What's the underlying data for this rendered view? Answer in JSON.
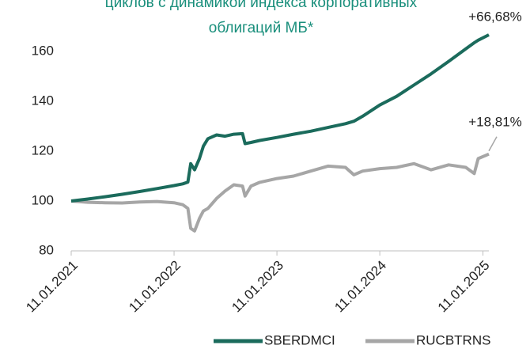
{
  "chart_data": {
    "type": "line",
    "title": [
      "циклов с динамикой индекса корпоративных",
      "облигаций МБ*"
    ],
    "x": [
      "11.01.2021",
      "11.03.2021",
      "11.05.2021",
      "11.07.2021",
      "11.09.2021",
      "11.11.2021",
      "11.01.2022",
      "11.02.2022",
      "01.03.2022",
      "11.03.2022",
      "25.03.2022",
      "11.04.2022",
      "25.04.2022",
      "11.05.2022",
      "11.06.2022",
      "11.07.2022",
      "11.08.2022",
      "11.09.2022",
      "20.09.2022",
      "11.10.2022",
      "11.11.2022",
      "11.01.2023",
      "11.03.2023",
      "11.05.2023",
      "11.07.2023",
      "11.09.2023",
      "11.10.2023",
      "11.11.2023",
      "11.01.2024",
      "11.03.2024",
      "11.05.2024",
      "11.07.2024",
      "11.09.2024",
      "11.11.2024",
      "11.12.2024",
      "25.12.2024",
      "01.02.2025"
    ],
    "series": [
      {
        "name": "SBERDMCI",
        "color": "#1b6b5c",
        "end_label": "+66,68%",
        "values": [
          100,
          100.8,
          101.7,
          102.7,
          103.8,
          105.0,
          106.2,
          106.9,
          107.6,
          115,
          112.5,
          117,
          122,
          125,
          126.5,
          126,
          126.8,
          127,
          123,
          123.5,
          124.3,
          125.5,
          126.8,
          128,
          129.5,
          131,
          132,
          134,
          138.5,
          142,
          146.5,
          151,
          156,
          161,
          163.5,
          164.5,
          166.68
        ]
      },
      {
        "name": "RUCBTRNS",
        "color": "#a6a6a6",
        "end_label": "+18,81%",
        "values": [
          100,
          99.5,
          99.3,
          99.2,
          99.6,
          99.8,
          99.3,
          98.5,
          97.0,
          89,
          88,
          93,
          96,
          97,
          101,
          104,
          106.5,
          106,
          102,
          106,
          107.5,
          109,
          110,
          112,
          114,
          113.5,
          110.5,
          112,
          113,
          113.5,
          115,
          112.5,
          114.5,
          113.5,
          111,
          117,
          118.81
        ]
      }
    ],
    "xlim": [
      "11.01.2021",
      "01.02.2025"
    ],
    "xticks": [
      "11.01.2021",
      "11.01.2022",
      "11.01.2023",
      "11.01.2024",
      "11.01.2025"
    ],
    "ylim": [
      80,
      170
    ],
    "yticks": [
      80,
      100,
      120,
      140,
      160
    ]
  }
}
